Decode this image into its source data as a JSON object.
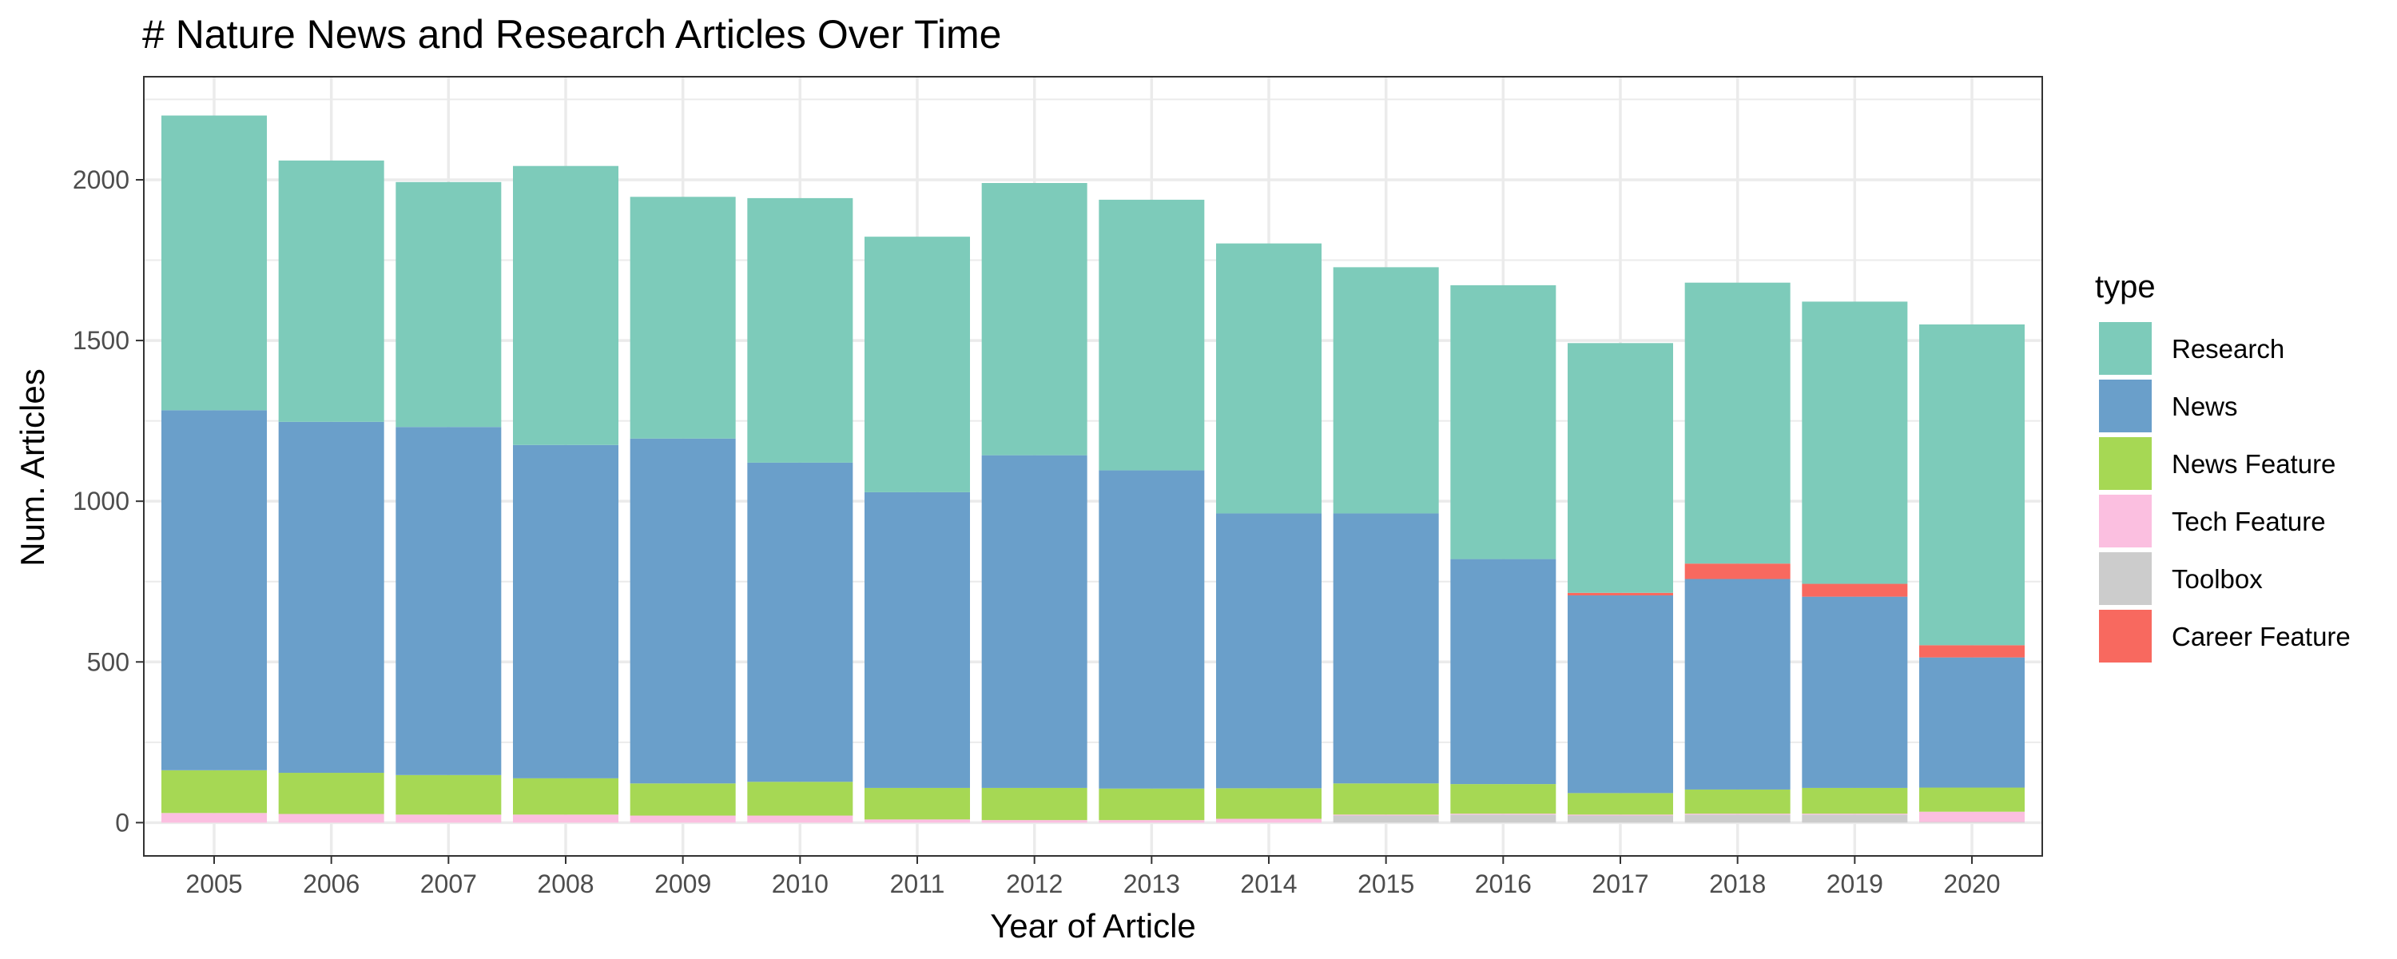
{
  "chart_data": {
    "type": "bar",
    "stacked": true,
    "title": "# Nature News and Research Articles Over Time",
    "xlabel": "Year of Article",
    "ylabel": "Num. Articles",
    "ylim": [
      0,
      2300
    ],
    "yticks": [
      0,
      500,
      1000,
      1500,
      2000
    ],
    "grid": true,
    "legend_title": "type",
    "legend_position": "right",
    "categories": [
      "2005",
      "2006",
      "2007",
      "2008",
      "2009",
      "2010",
      "2011",
      "2012",
      "2013",
      "2014",
      "2015",
      "2016",
      "2017",
      "2018",
      "2019",
      "2020"
    ],
    "series": [
      {
        "name": "Toolbox",
        "color": "#cccccc",
        "values": [
          0,
          0,
          0,
          0,
          0,
          0,
          0,
          0,
          0,
          0,
          22,
          25,
          22,
          25,
          25,
          2
        ]
      },
      {
        "name": "Tech Feature",
        "color": "#fbbfe0",
        "values": [
          30,
          27,
          25,
          25,
          22,
          22,
          10,
          8,
          8,
          12,
          3,
          3,
          3,
          3,
          3,
          32
        ]
      },
      {
        "name": "News Feature",
        "color": "#a6d854",
        "values": [
          133,
          128,
          123,
          113,
          100,
          105,
          98,
          100,
          98,
          95,
          97,
          92,
          67,
          75,
          80,
          75
        ]
      },
      {
        "name": "News",
        "color": "#6a9fca",
        "values": [
          1120,
          1092,
          1083,
          1037,
          1073,
          993,
          920,
          1035,
          990,
          855,
          840,
          700,
          615,
          655,
          595,
          405
        ]
      },
      {
        "name": "Career Feature",
        "color": "#f8695f",
        "values": [
          0,
          0,
          0,
          0,
          0,
          0,
          0,
          0,
          0,
          0,
          0,
          0,
          8,
          48,
          40,
          38
        ]
      },
      {
        "name": "Research",
        "color": "#7dcbba",
        "values": [
          917,
          813,
          762,
          868,
          752,
          823,
          795,
          847,
          842,
          840,
          766,
          852,
          777,
          874,
          878,
          998
        ]
      }
    ]
  },
  "legend_order": [
    "Research",
    "News",
    "News Feature",
    "Tech Feature",
    "Toolbox",
    "Career Feature"
  ]
}
